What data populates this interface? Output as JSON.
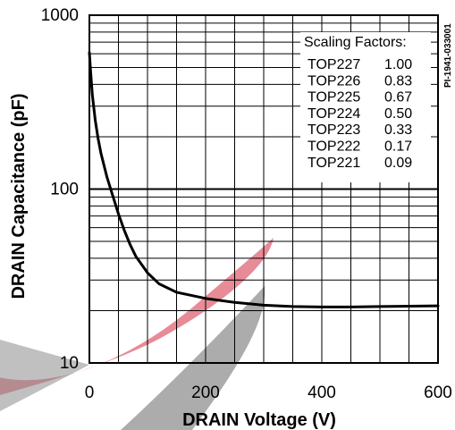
{
  "chart_data": {
    "type": "line",
    "ylabel": "DRAIN Capacitance (pF)",
    "xlabel": "DRAIN Voltage (V)",
    "figure_id": "PI-1941-033001",
    "x_ticks": [
      "0",
      "200",
      "400",
      "600"
    ],
    "y_ticks": [
      "10",
      "100",
      "1000"
    ],
    "xlim": [
      0,
      600
    ],
    "ylim": [
      10,
      1000
    ],
    "y_scale": "log",
    "grid": true,
    "series": [
      {
        "x": [
          0,
          2,
          5,
          10,
          15,
          20,
          30,
          40,
          50,
          60,
          70,
          80,
          100,
          120,
          150,
          200,
          250,
          300,
          350,
          400,
          450,
          500,
          550,
          600
        ],
        "y": [
          610,
          480,
          350,
          250,
          195,
          160,
          118,
          92,
          72,
          58,
          48,
          41,
          33,
          28.5,
          25.5,
          23.5,
          22.3,
          21.5,
          21.1,
          21.0,
          21.0,
          21.1,
          21.2,
          21.3
        ]
      }
    ],
    "legend": {
      "position": "top-right",
      "title": "Scaling Factors:",
      "entries": [
        {
          "part": "TOP227",
          "factor": "1.00"
        },
        {
          "part": "TOP226",
          "factor": "0.83"
        },
        {
          "part": "TOP225",
          "factor": "0.67"
        },
        {
          "part": "TOP224",
          "factor": "0.50"
        },
        {
          "part": "TOP223",
          "factor": "0.33"
        },
        {
          "part": "TOP222",
          "factor": "0.17"
        },
        {
          "part": "TOP221",
          "factor": "0.09"
        }
      ]
    },
    "colors": {
      "line": "#000000",
      "grid": "#000000",
      "watermark_red": "#e06a78",
      "watermark_gray": "#8c8c8c"
    }
  }
}
